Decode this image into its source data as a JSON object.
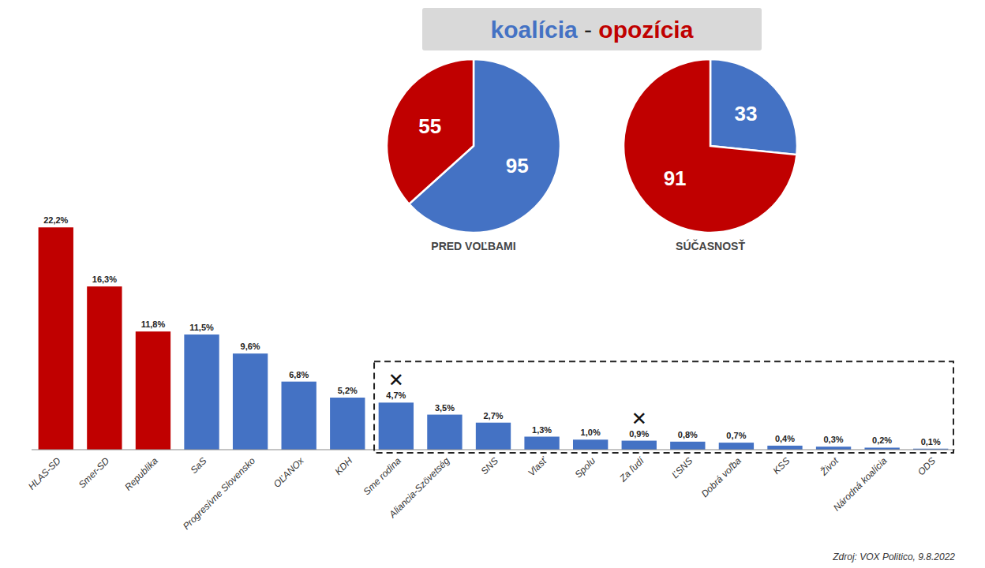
{
  "chart_data": [
    {
      "type": "bar",
      "title": "koalícia - opozícia",
      "categories": [
        "HLAS-SD",
        "Smer-SD",
        "Republika",
        "SaS",
        "Progresívne Slovensko",
        "OĽANOx",
        "KDH",
        "Sme rodina",
        "Aliancia-Szövetség",
        "SNS",
        "Vlasť",
        "Spolu",
        "Za ľudí",
        "ĽSNS",
        "Dobrá voľba",
        "KSS",
        "Život",
        "Národná koalícia",
        "ODS"
      ],
      "values": [
        22.2,
        16.3,
        11.8,
        11.5,
        9.6,
        6.8,
        5.2,
        4.7,
        3.5,
        2.7,
        1.3,
        1.0,
        0.9,
        0.8,
        0.7,
        0.4,
        0.3,
        0.2,
        0.1
      ],
      "value_labels": [
        "22,2%",
        "16,3%",
        "11,8%",
        "11,5%",
        "9,6%",
        "6,8%",
        "5,2%",
        "4,7%",
        "3,5%",
        "2,7%",
        "1,3%",
        "1,0%",
        "0,9%",
        "0,8%",
        "0,7%",
        "0,4%",
        "0,3%",
        "0,2%",
        "0,1%"
      ],
      "colors": [
        "#C00000",
        "#C00000",
        "#C00000",
        "#4472C4",
        "#4472C4",
        "#4472C4",
        "#4472C4",
        "#4472C4",
        "#4472C4",
        "#4472C4",
        "#4472C4",
        "#4472C4",
        "#4472C4",
        "#4472C4",
        "#4472C4",
        "#4472C4",
        "#4472C4",
        "#4472C4",
        "#4472C4"
      ],
      "data_labels": true,
      "ylim": [
        0,
        26
      ],
      "tick_labels": "x",
      "grid": false,
      "annotations": [
        {
          "text": "✕",
          "category": "Sme rodina"
        },
        {
          "text": "✕",
          "category": "Za ľudí"
        },
        {
          "text": "Zdroj: VOX Politico, 9.8.2022"
        }
      ]
    },
    {
      "type": "pie",
      "title": "PRED VOĽBAMI",
      "values": [
        95,
        55
      ],
      "colors": [
        "#4472C4",
        "#C00000"
      ],
      "data_labels": true
    },
    {
      "type": "pie",
      "title": "SÚČASNOSŤ",
      "values": [
        33,
        91
      ],
      "colors": [
        "#4472C4",
        "#C00000"
      ],
      "data_labels": true
    }
  ]
}
